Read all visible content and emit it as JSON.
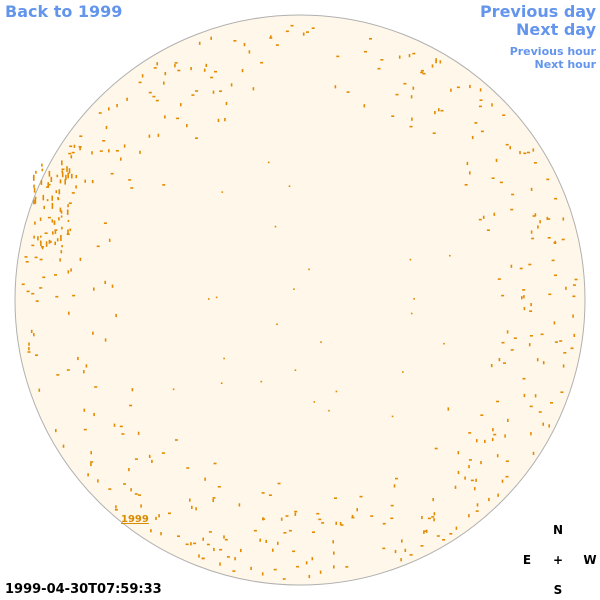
{
  "navigation": {
    "back_label": "Back to 1999",
    "previous_day_label": "Previous day",
    "next_day_label": "Next day",
    "previous_hour_label": "Previous hour",
    "next_hour_label": "Next hour"
  },
  "observation": {
    "timestamp": "1999-04-30T07:59:33",
    "year_label": "1999"
  },
  "compass": {
    "north": "N",
    "south": "S",
    "east": "E",
    "west": "W",
    "center": "+"
  },
  "colors": {
    "link": "#6495ed",
    "disk_fill": "#fff8ea",
    "disk_outline": "#b0b0b0",
    "feature": "#e38a00"
  }
}
